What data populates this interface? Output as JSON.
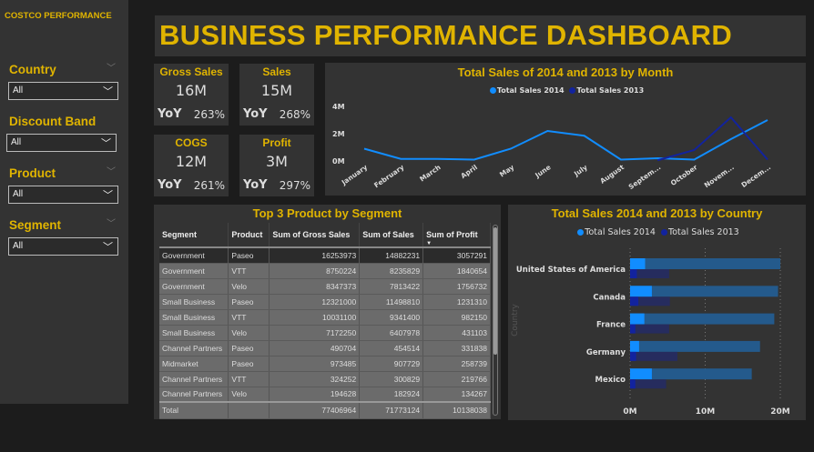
{
  "sidebar": {
    "brand": "COSTCO PERFORMANCE",
    "slicers": [
      {
        "label": "Country",
        "value": "All"
      },
      {
        "label": "Discount Band",
        "value": "All"
      },
      {
        "label": "Product",
        "value": "All"
      },
      {
        "label": "Segment",
        "value": "All"
      }
    ]
  },
  "header": {
    "title": "BUSINESS PERFORMANCE DASHBOARD"
  },
  "kpis": [
    {
      "label": "Gross Sales",
      "value": "16M",
      "yoy_label": "YoY",
      "yoy": "263%"
    },
    {
      "label": "Sales",
      "value": "15M",
      "yoy_label": "YoY",
      "yoy": "268%"
    },
    {
      "label": "COGS",
      "value": "12M",
      "yoy_label": "YoY",
      "yoy": "261%"
    },
    {
      "label": "Profit",
      "value": "3M",
      "yoy_label": "YoY",
      "yoy": "297%"
    }
  ],
  "colors": {
    "accent": "#e0b400",
    "series_2014": "#118dff",
    "series_2013": "#12239e",
    "panel": "#333333"
  },
  "table": {
    "title": "Top 3 Product by Segment",
    "columns": [
      "Segment",
      "Product",
      "Sum of Gross Sales",
      "Sum of Sales",
      "Sum of Profit"
    ],
    "sort_column": "Sum of Profit",
    "sort_direction": "descending",
    "rows": [
      [
        "Government",
        "Paseo",
        "16253973",
        "14882231",
        "3057291"
      ],
      [
        "Government",
        "VTT",
        "8750224",
        "8235829",
        "1840654"
      ],
      [
        "Government",
        "Velo",
        "8347373",
        "7813422",
        "1756732"
      ],
      [
        "Small Business",
        "Paseo",
        "12321000",
        "11498810",
        "1231310"
      ],
      [
        "Small Business",
        "VTT",
        "10031100",
        "9341400",
        "982150"
      ],
      [
        "Small Business",
        "Velo",
        "7172250",
        "6407978",
        "431103"
      ],
      [
        "Channel Partners",
        "Paseo",
        "490704",
        "454514",
        "331838"
      ],
      [
        "Midmarket",
        "Paseo",
        "973485",
        "907729",
        "258739"
      ],
      [
        "Channel Partners",
        "VTT",
        "324252",
        "300829",
        "219766"
      ],
      [
        "Channel Partners",
        "Velo",
        "194628",
        "182924",
        "134267"
      ]
    ],
    "total": [
      "Total",
      "",
      "77406964",
      "71773124",
      "10138038"
    ]
  },
  "chart_data": [
    {
      "type": "line",
      "title": "Total Sales of 2014 and 2013 by Month",
      "xlabel": "",
      "ylabel": "",
      "ylim": [
        0,
        4000000
      ],
      "yticks": [
        "0M",
        "2M",
        "4M"
      ],
      "ytick_values": [
        0,
        2000000,
        4000000
      ],
      "grid": false,
      "legend": "top",
      "categories": [
        "January",
        "February",
        "March",
        "April",
        "May",
        "June",
        "July",
        "August",
        "Septem...",
        "October",
        "Novem...",
        "Decem..."
      ],
      "series": [
        {
          "name": "Total Sales 2014",
          "values": [
            900000,
            150000,
            150000,
            100000,
            900000,
            2200000,
            1850000,
            100000,
            200000,
            100000,
            1600000,
            3000000
          ]
        },
        {
          "name": "Total Sales 2013",
          "values": [
            null,
            null,
            null,
            null,
            null,
            null,
            null,
            null,
            50000,
            800000,
            3200000,
            100000
          ]
        }
      ]
    },
    {
      "type": "bar",
      "orientation": "horizontal",
      "title": "Total Sales 2014 and 2013 by Country",
      "ylabel": "Country",
      "xlabel": "",
      "xlim": [
        0,
        20000000
      ],
      "xticks": [
        "0M",
        "10M",
        "20M"
      ],
      "xtick_values": [
        0,
        10000000,
        20000000
      ],
      "grid": true,
      "legend": "top",
      "categories": [
        "United States of America",
        "Canada",
        "France",
        "Germany",
        "Mexico"
      ],
      "series": [
        {
          "name": "Total Sales 2014",
          "values": [
            20000000,
            19700000,
            19200000,
            17300000,
            16200000
          ],
          "highlighted": [
            2000000,
            2900000,
            1900000,
            1200000,
            2900000
          ]
        },
        {
          "name": "Total Sales 2013",
          "values": [
            5200000,
            5300000,
            5200000,
            6300000,
            4800000
          ],
          "highlighted": [
            900000,
            1100000,
            700000,
            800000,
            700000
          ]
        }
      ]
    }
  ]
}
